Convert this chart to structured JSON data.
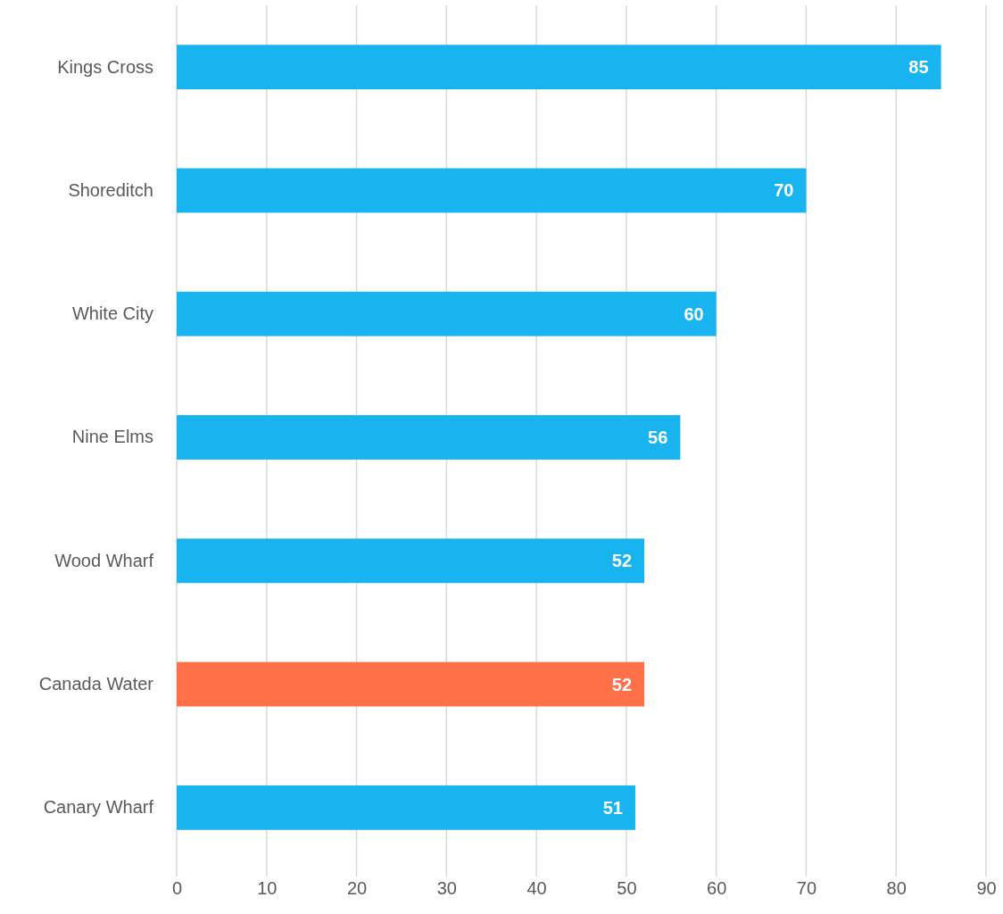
{
  "chart_data": {
    "type": "bar",
    "orientation": "horizontal",
    "categories": [
      "Kings Cross",
      "Shoreditch",
      "White City",
      "Nine Elms",
      "Wood Wharf",
      "Canada Water",
      "Canary Wharf"
    ],
    "values": [
      85,
      70,
      60,
      56,
      52,
      52,
      51
    ],
    "colors": [
      "#17b4ef",
      "#17b4ef",
      "#17b4ef",
      "#17b4ef",
      "#17b4ef",
      "#ff7049",
      "#17b4ef"
    ],
    "xlim": [
      0,
      90
    ],
    "xticks": [
      0,
      10,
      20,
      30,
      40,
      50,
      60,
      70,
      80,
      90
    ],
    "grid": "x",
    "data_labels": true
  }
}
